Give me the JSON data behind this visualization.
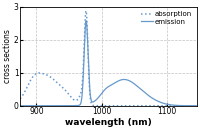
{
  "xlabel": "wavelength (nm)",
  "ylabel": "cross sections",
  "xlim": [
    875,
    1145
  ],
  "ylim": [
    0,
    3.0
  ],
  "yticks": [
    0,
    1,
    2,
    3
  ],
  "xticks": [
    900,
    1000,
    1100
  ],
  "line_color": "#6699cc",
  "background_color": "#ffffff",
  "grid_color": "#bbbbbb",
  "legend_absorption": "absorption",
  "legend_emission": "emission"
}
